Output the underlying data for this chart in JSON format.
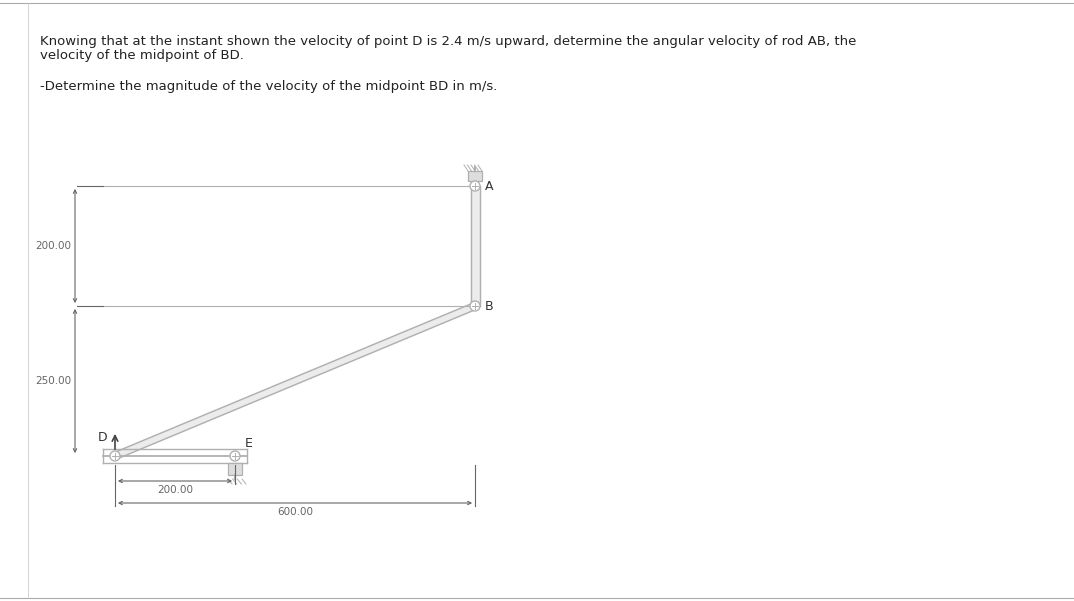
{
  "title_line1": "Knowing that at the instant shown the velocity of point D is 2.4 m/s upward, determine the angular velocity of rod AB, the",
  "title_line2": "velocity of the midpoint of BD.",
  "subtitle": "-Determine the magnitude of the velocity of the midpoint BD in m/s.",
  "label_A": "A",
  "label_B": "B",
  "label_D": "D",
  "label_E": "E",
  "dim_200": "200.00",
  "dim_600": "600.00",
  "dim_v200": "200.00",
  "dim_v250": "250.00",
  "fig_width": 10.74,
  "fig_height": 6.01,
  "dpi": 100,
  "lc": "#b0b0b0",
  "dc": "#666666",
  "fc": "#e8e8e8"
}
